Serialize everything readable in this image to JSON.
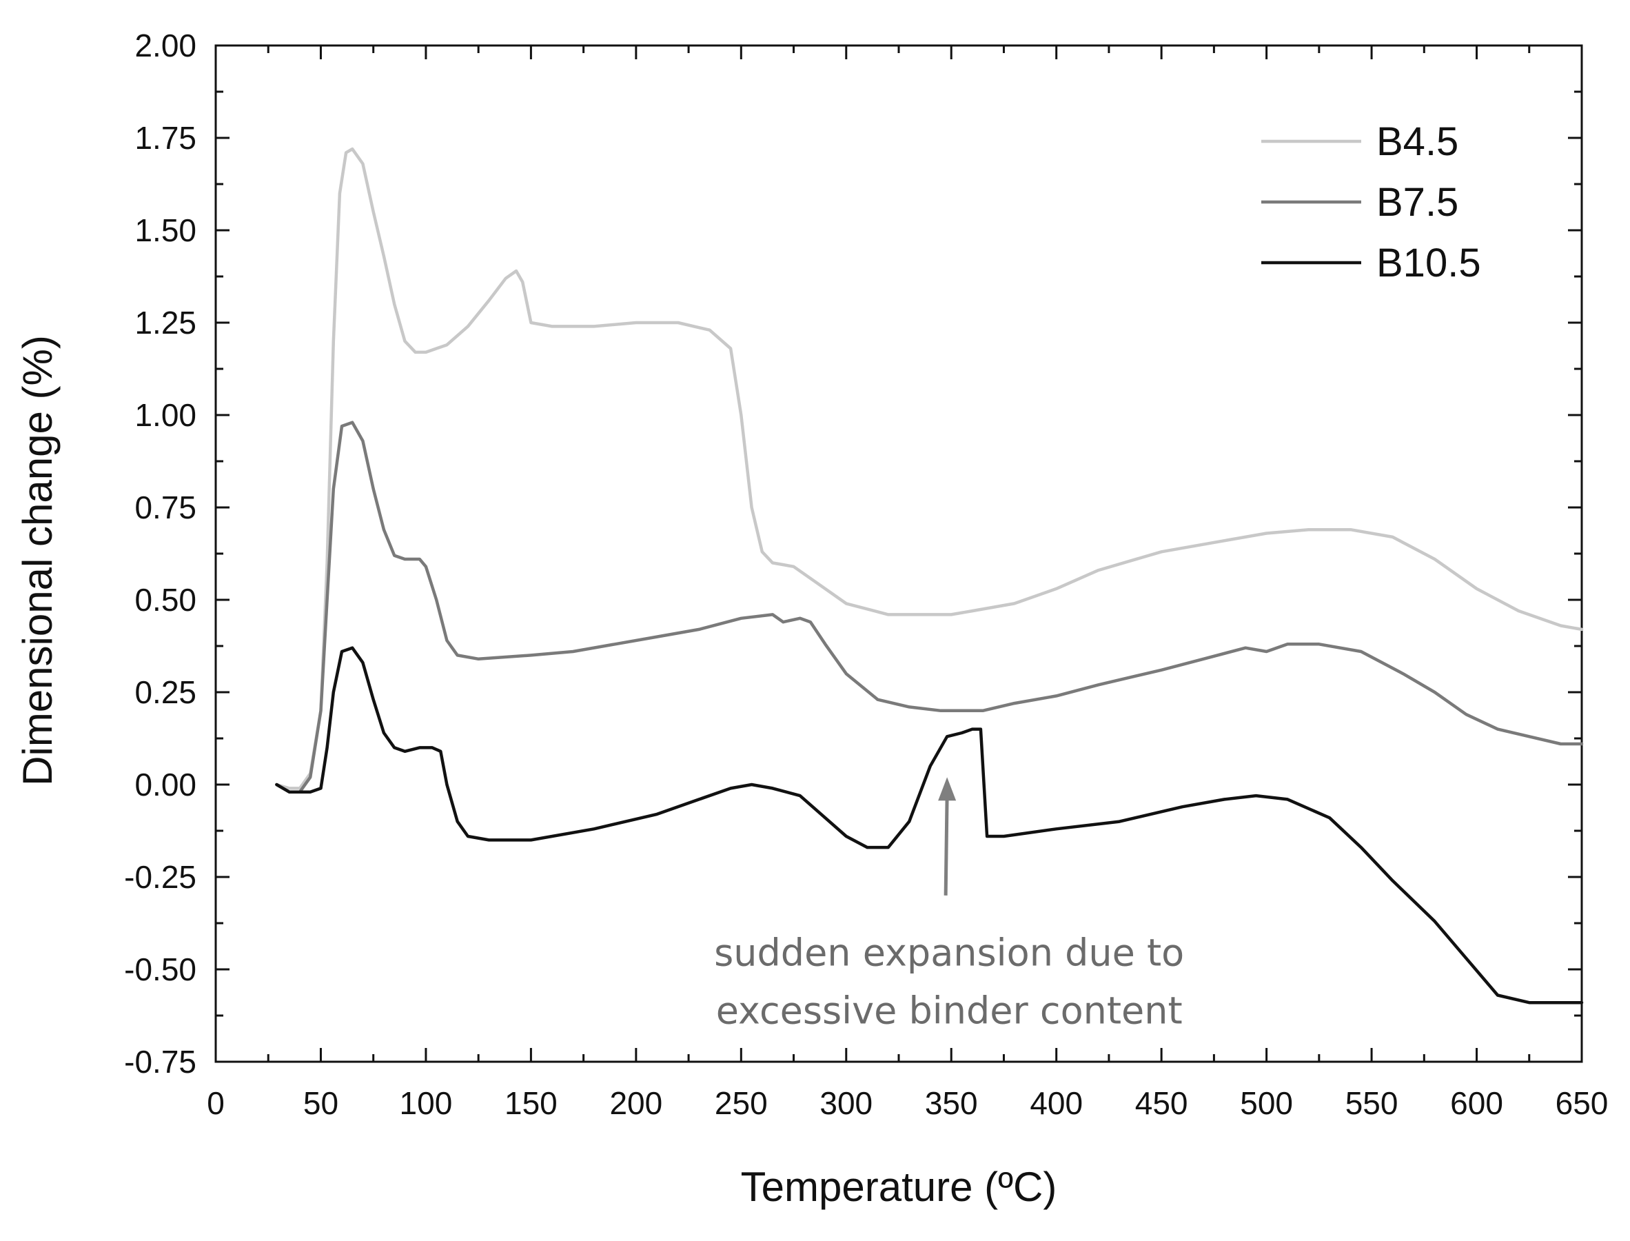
{
  "chart_data": {
    "type": "line",
    "xlabel": "Temperature (ºC)",
    "ylabel": "Dimensional change (%)",
    "xlim": [
      0,
      650
    ],
    "ylim": [
      -0.75,
      2.0
    ],
    "x_ticks": [
      0,
      50,
      100,
      150,
      200,
      250,
      300,
      350,
      400,
      450,
      500,
      550,
      600,
      650
    ],
    "x_tick_labels": [
      "0",
      "50",
      "100",
      "150",
      "200",
      "250",
      "300",
      "350",
      "400",
      "450",
      "500",
      "550",
      "600",
      "650"
    ],
    "y_ticks": [
      2.0,
      1.75,
      1.5,
      1.25,
      1.0,
      0.75,
      0.5,
      0.25,
      0.0,
      -0.25,
      -0.5,
      -0.75
    ],
    "y_tick_labels": [
      "2.00",
      "1.75",
      "1.50",
      "1.25",
      "1.00",
      "0.75",
      "0.50",
      "0.25",
      "0.00",
      "-0.25",
      "-0.50",
      "-0.75"
    ],
    "grid": false,
    "legend_position": "top-right",
    "series": [
      {
        "name": "B4.5",
        "color": "#c8c8c8",
        "points": [
          [
            29,
            0.0
          ],
          [
            35,
            -0.01
          ],
          [
            40,
            -0.01
          ],
          [
            45,
            0.03
          ],
          [
            50,
            0.2
          ],
          [
            53,
            0.6
          ],
          [
            56,
            1.2
          ],
          [
            59,
            1.6
          ],
          [
            62,
            1.71
          ],
          [
            65,
            1.72
          ],
          [
            70,
            1.68
          ],
          [
            75,
            1.55
          ],
          [
            80,
            1.43
          ],
          [
            85,
            1.3
          ],
          [
            90,
            1.2
          ],
          [
            95,
            1.17
          ],
          [
            100,
            1.17
          ],
          [
            110,
            1.19
          ],
          [
            120,
            1.24
          ],
          [
            130,
            1.31
          ],
          [
            138,
            1.37
          ],
          [
            143,
            1.39
          ],
          [
            146,
            1.36
          ],
          [
            150,
            1.25
          ],
          [
            160,
            1.24
          ],
          [
            180,
            1.24
          ],
          [
            200,
            1.25
          ],
          [
            220,
            1.25
          ],
          [
            235,
            1.23
          ],
          [
            245,
            1.18
          ],
          [
            250,
            1.0
          ],
          [
            255,
            0.75
          ],
          [
            260,
            0.63
          ],
          [
            265,
            0.6
          ],
          [
            275,
            0.59
          ],
          [
            285,
            0.55
          ],
          [
            300,
            0.49
          ],
          [
            320,
            0.46
          ],
          [
            340,
            0.46
          ],
          [
            350,
            0.46
          ],
          [
            360,
            0.47
          ],
          [
            380,
            0.49
          ],
          [
            400,
            0.53
          ],
          [
            420,
            0.58
          ],
          [
            450,
            0.63
          ],
          [
            480,
            0.66
          ],
          [
            500,
            0.68
          ],
          [
            520,
            0.69
          ],
          [
            540,
            0.69
          ],
          [
            560,
            0.67
          ],
          [
            580,
            0.61
          ],
          [
            600,
            0.53
          ],
          [
            620,
            0.47
          ],
          [
            640,
            0.43
          ],
          [
            650,
            0.42
          ]
        ]
      },
      {
        "name": "B7.5",
        "color": "#7a7a7a",
        "points": [
          [
            29,
            0.0
          ],
          [
            35,
            -0.02
          ],
          [
            40,
            -0.02
          ],
          [
            45,
            0.02
          ],
          [
            50,
            0.2
          ],
          [
            53,
            0.5
          ],
          [
            56,
            0.8
          ],
          [
            60,
            0.97
          ],
          [
            65,
            0.98
          ],
          [
            70,
            0.93
          ],
          [
            75,
            0.8
          ],
          [
            80,
            0.69
          ],
          [
            85,
            0.62
          ],
          [
            90,
            0.61
          ],
          [
            97,
            0.61
          ],
          [
            100,
            0.59
          ],
          [
            105,
            0.5
          ],
          [
            110,
            0.39
          ],
          [
            115,
            0.35
          ],
          [
            125,
            0.34
          ],
          [
            150,
            0.35
          ],
          [
            170,
            0.36
          ],
          [
            190,
            0.38
          ],
          [
            210,
            0.4
          ],
          [
            230,
            0.42
          ],
          [
            250,
            0.45
          ],
          [
            265,
            0.46
          ],
          [
            270,
            0.44
          ],
          [
            278,
            0.45
          ],
          [
            283,
            0.44
          ],
          [
            290,
            0.38
          ],
          [
            300,
            0.3
          ],
          [
            315,
            0.23
          ],
          [
            330,
            0.21
          ],
          [
            345,
            0.2
          ],
          [
            365,
            0.2
          ],
          [
            380,
            0.22
          ],
          [
            400,
            0.24
          ],
          [
            420,
            0.27
          ],
          [
            450,
            0.31
          ],
          [
            470,
            0.34
          ],
          [
            490,
            0.37
          ],
          [
            500,
            0.36
          ],
          [
            510,
            0.38
          ],
          [
            525,
            0.38
          ],
          [
            545,
            0.36
          ],
          [
            565,
            0.3
          ],
          [
            580,
            0.25
          ],
          [
            595,
            0.19
          ],
          [
            610,
            0.15
          ],
          [
            625,
            0.13
          ],
          [
            640,
            0.11
          ],
          [
            650,
            0.11
          ]
        ]
      },
      {
        "name": "B10.5",
        "color": "#111111",
        "points": [
          [
            29,
            0.0
          ],
          [
            35,
            -0.02
          ],
          [
            40,
            -0.02
          ],
          [
            45,
            -0.02
          ],
          [
            50,
            -0.01
          ],
          [
            53,
            0.1
          ],
          [
            56,
            0.25
          ],
          [
            60,
            0.36
          ],
          [
            65,
            0.37
          ],
          [
            70,
            0.33
          ],
          [
            75,
            0.23
          ],
          [
            80,
            0.14
          ],
          [
            85,
            0.1
          ],
          [
            90,
            0.09
          ],
          [
            97,
            0.1
          ],
          [
            103,
            0.1
          ],
          [
            107,
            0.09
          ],
          [
            110,
            0.0
          ],
          [
            115,
            -0.1
          ],
          [
            120,
            -0.14
          ],
          [
            130,
            -0.15
          ],
          [
            150,
            -0.15
          ],
          [
            180,
            -0.12
          ],
          [
            210,
            -0.08
          ],
          [
            230,
            -0.04
          ],
          [
            245,
            -0.01
          ],
          [
            255,
            0.0
          ],
          [
            265,
            -0.01
          ],
          [
            278,
            -0.03
          ],
          [
            290,
            -0.09
          ],
          [
            300,
            -0.14
          ],
          [
            310,
            -0.17
          ],
          [
            320,
            -0.17
          ],
          [
            330,
            -0.1
          ],
          [
            340,
            0.05
          ],
          [
            348,
            0.13
          ],
          [
            355,
            0.14
          ],
          [
            360,
            0.15
          ],
          [
            364,
            0.15
          ],
          [
            367,
            -0.14
          ],
          [
            375,
            -0.14
          ],
          [
            400,
            -0.12
          ],
          [
            430,
            -0.1
          ],
          [
            460,
            -0.06
          ],
          [
            480,
            -0.04
          ],
          [
            495,
            -0.03
          ],
          [
            510,
            -0.04
          ],
          [
            530,
            -0.09
          ],
          [
            545,
            -0.17
          ],
          [
            560,
            -0.26
          ],
          [
            580,
            -0.37
          ],
          [
            595,
            -0.47
          ],
          [
            610,
            -0.57
          ],
          [
            625,
            -0.59
          ],
          [
            640,
            -0.59
          ],
          [
            650,
            -0.59
          ]
        ]
      }
    ],
    "annotations": [
      {
        "text_lines": [
          "sudden expansion due to",
          "excessive binder content"
        ],
        "arrow_to": [
          348,
          0.02
        ],
        "arrow_from": [
          348,
          -0.3
        ],
        "color": "#7f7f7f"
      }
    ]
  }
}
